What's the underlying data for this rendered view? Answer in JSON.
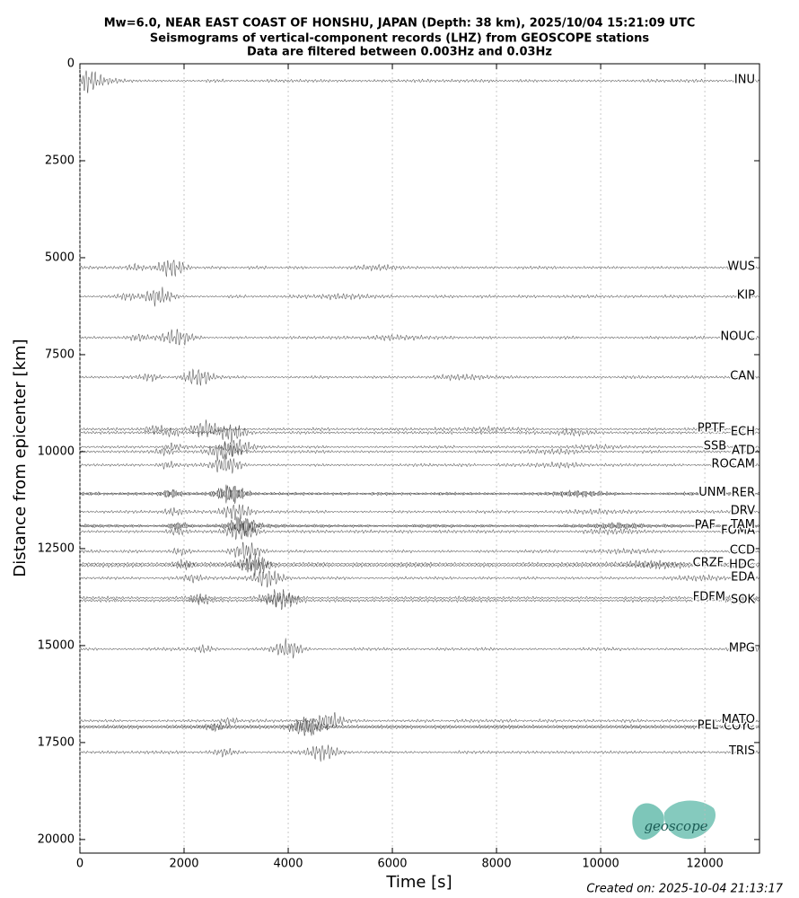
{
  "chart_data": {
    "type": "record-section",
    "title": "Mw=6.0, NEAR EAST COAST OF HONSHU, JAPAN (Depth: 38 km), 2025/10/04 15:21:09 UTC",
    "subtitle": [
      "Seismograms of vertical-component records (LHZ) from GEOSCOPE stations",
      "Data are filtered between 0.003Hz and 0.03Hz"
    ],
    "xlabel": "Time [s]",
    "ylabel": "Distance from epicenter [km]",
    "xlim": [
      0,
      13050
    ],
    "ylim": [
      20350,
      0
    ],
    "xticks": [
      0,
      2000,
      4000,
      6000,
      8000,
      10000,
      12000
    ],
    "yticks": [
      0,
      2500,
      5000,
      7500,
      10000,
      12500,
      15000,
      17500,
      20000
    ],
    "grid": "x",
    "color": "#3a3a3a",
    "stations": [
      {
        "name": "INU",
        "distance": 440,
        "peak": 150
      },
      {
        "name": "WUS",
        "distance": 5255,
        "peak": 1750
      },
      {
        "name": "KIP",
        "distance": 6000,
        "peak": 1500
      },
      {
        "name": "NOUC",
        "distance": 7060,
        "peak": 1850
      },
      {
        "name": "CAN",
        "distance": 8080,
        "peak": 2250
      },
      {
        "name": "PPTF",
        "distance": 9420,
        "peak": 2400
      },
      {
        "name": "ECH",
        "distance": 9510,
        "peak": 2900
      },
      {
        "name": "SSB",
        "distance": 9880,
        "peak": 3000
      },
      {
        "name": "ATD",
        "distance": 10000,
        "peak": 2750
      },
      {
        "name": "ROCAM",
        "distance": 10345,
        "peak": 2800
      },
      {
        "name": "UNM",
        "distance": 11080,
        "peak": 2900
      },
      {
        "name": "RER",
        "distance": 11090,
        "peak": 2900
      },
      {
        "name": "DRV",
        "distance": 11550,
        "peak": 3000
      },
      {
        "name": "TAM",
        "distance": 11910,
        "peak": 3100
      },
      {
        "name": "PAF",
        "distance": 11920,
        "peak": 3200
      },
      {
        "name": "FOMA",
        "distance": 12060,
        "peak": 3100
      },
      {
        "name": "CCD",
        "distance": 12570,
        "peak": 3200
      },
      {
        "name": "CRZF",
        "distance": 12890,
        "peak": 3300
      },
      {
        "name": "HDC",
        "distance": 12940,
        "peak": 3400
      },
      {
        "name": "EDA",
        "distance": 13260,
        "peak": 3600
      },
      {
        "name": "FDFM",
        "distance": 13770,
        "peak": 3800
      },
      {
        "name": "SOK",
        "distance": 13840,
        "peak": 3900
      },
      {
        "name": "MPG",
        "distance": 15090,
        "peak": 4000
      },
      {
        "name": "MATO",
        "distance": 16940,
        "peak": 4800
      },
      {
        "name": "PEL",
        "distance": 17080,
        "peak": 4400
      },
      {
        "name": "COYC",
        "distance": 17110,
        "peak": 4300
      },
      {
        "name": "TRIS",
        "distance": 17750,
        "peak": 4650
      }
    ],
    "footer": "Created on: 2025-10-04 21:13:17",
    "logo": "geoscope"
  }
}
